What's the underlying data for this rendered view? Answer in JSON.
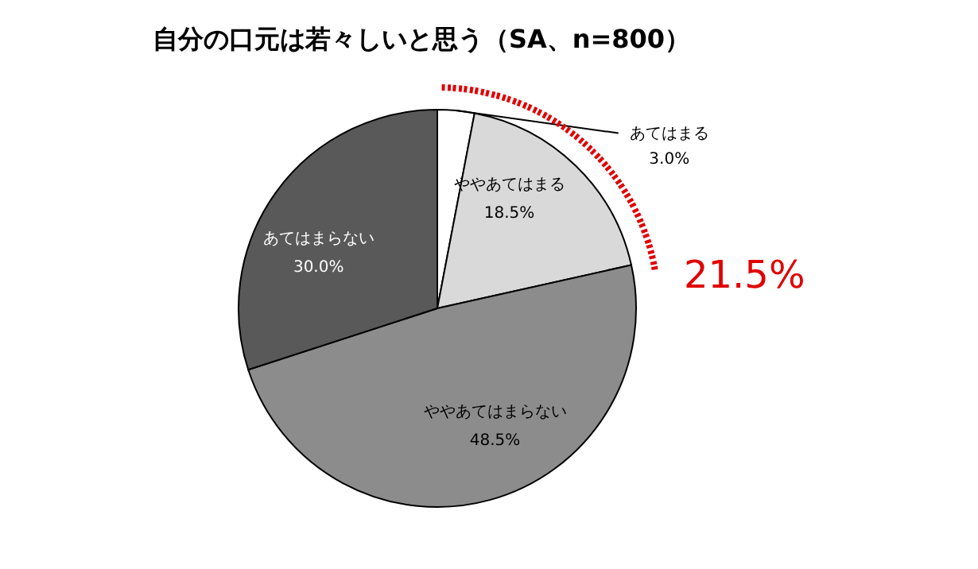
{
  "chart_data": {
    "type": "pie",
    "title": "自分の口元は若々しいと思う（SA、n=800）",
    "categories": [
      "あてはまる",
      "ややあてはまる",
      "ややあてはまらない",
      "あてはまらない"
    ],
    "values": [
      3.0,
      18.5,
      48.5,
      30.0
    ],
    "value_labels": [
      "3.0%",
      "18.5%",
      "48.5%",
      "30.0%"
    ],
    "colors": [
      "#ffffff",
      "#d9d9d9",
      "#8c8c8c",
      "#595959"
    ],
    "annotations": [
      "21.5%"
    ],
    "legend": false
  }
}
